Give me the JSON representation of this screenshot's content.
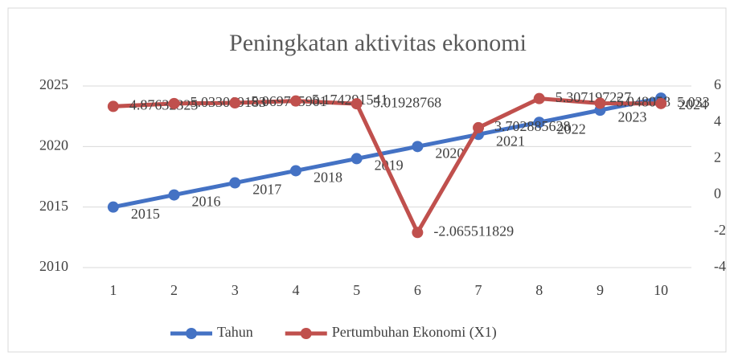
{
  "chart_data": {
    "type": "line",
    "title": "Peningkatan aktivitas ekonomi",
    "categories": [
      "1",
      "2",
      "3",
      "4",
      "5",
      "6",
      "7",
      "8",
      "9",
      "10"
    ],
    "series": [
      {
        "name": "Tahun",
        "color": "#4472c4",
        "values": [
          2015,
          2016,
          2017,
          2018,
          2019,
          2020,
          2021,
          2022,
          2023,
          2024
        ]
      },
      {
        "name": "Pertumbuhan Ekonomi (X1)",
        "color": "#c0504d",
        "axis": "y2",
        "values": [
          4.87632325,
          5.033069183,
          5.069785901,
          5.174291541,
          5.01928768,
          -2.065511829,
          3.702885628,
          5.307197227,
          5.048058,
          5.033
        ]
      }
    ],
    "ylim": [
      2010,
      2025
    ],
    "yticks": [
      2010,
      2015,
      2020,
      2025
    ],
    "y2lim": [
      -4,
      6
    ],
    "y2ticks": [
      -4,
      -2,
      0,
      2,
      4,
      6
    ],
    "grid": true,
    "legend": "bottom"
  }
}
